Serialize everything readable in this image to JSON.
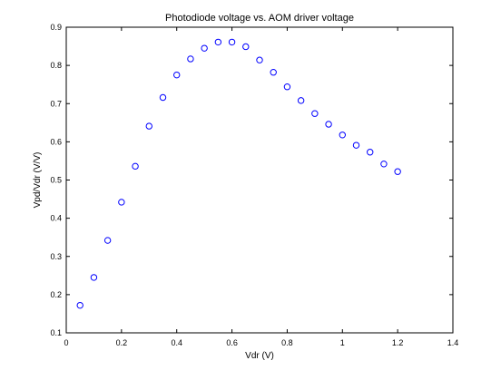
{
  "chart_data": {
    "type": "scatter",
    "title": "Photodiode voltage vs. AOM driver voltage",
    "xlabel": "Vdr (V)",
    "ylabel": "Vpd/Vdr (V/V)",
    "xlim": [
      0,
      1.4
    ],
    "ylim": [
      0.1,
      0.9
    ],
    "xticks": [
      "0",
      "0.2",
      "0.4",
      "0.6",
      "0.8",
      "1",
      "1.2",
      "1.4"
    ],
    "yticks": [
      "0.1",
      "0.2",
      "0.3",
      "0.4",
      "0.5",
      "0.6",
      "0.7",
      "0.8",
      "0.9"
    ],
    "grid": false,
    "marker": "circle-open",
    "marker_color": "#0000ff",
    "points": [
      {
        "x": 0.05,
        "y": 0.172
      },
      {
        "x": 0.1,
        "y": 0.245
      },
      {
        "x": 0.15,
        "y": 0.342
      },
      {
        "x": 0.2,
        "y": 0.442
      },
      {
        "x": 0.25,
        "y": 0.536
      },
      {
        "x": 0.3,
        "y": 0.641
      },
      {
        "x": 0.35,
        "y": 0.716
      },
      {
        "x": 0.4,
        "y": 0.775
      },
      {
        "x": 0.45,
        "y": 0.817
      },
      {
        "x": 0.5,
        "y": 0.845
      },
      {
        "x": 0.55,
        "y": 0.861
      },
      {
        "x": 0.6,
        "y": 0.861
      },
      {
        "x": 0.65,
        "y": 0.849
      },
      {
        "x": 0.7,
        "y": 0.814
      },
      {
        "x": 0.75,
        "y": 0.782
      },
      {
        "x": 0.8,
        "y": 0.744
      },
      {
        "x": 0.85,
        "y": 0.708
      },
      {
        "x": 0.9,
        "y": 0.674
      },
      {
        "x": 0.95,
        "y": 0.646
      },
      {
        "x": 1.0,
        "y": 0.618
      },
      {
        "x": 1.05,
        "y": 0.591
      },
      {
        "x": 1.1,
        "y": 0.573
      },
      {
        "x": 1.15,
        "y": 0.542
      },
      {
        "x": 1.2,
        "y": 0.522
      }
    ]
  }
}
